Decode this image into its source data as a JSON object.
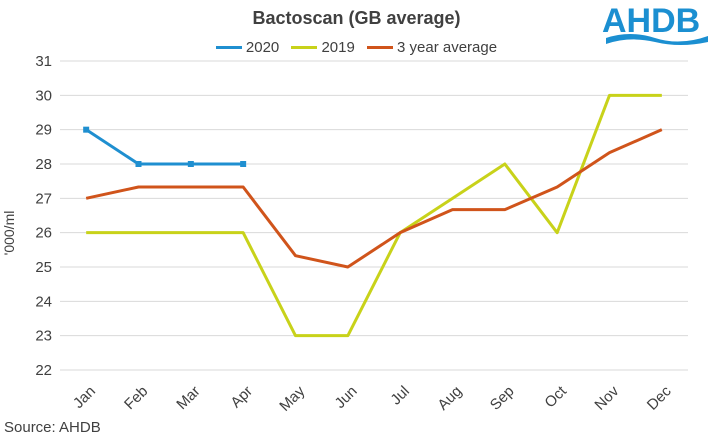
{
  "source": "Source: AHDB",
  "logo_text": "AHDB",
  "chart_data": {
    "type": "line",
    "title": "Bactoscan (GB average)",
    "ylabel": "'000/ml",
    "xlabel": "",
    "categories": [
      "Jan",
      "Feb",
      "Mar",
      "Apr",
      "May",
      "Jun",
      "Jul",
      "Aug",
      "Sep",
      "Oct",
      "Nov",
      "Dec"
    ],
    "ylim": [
      22,
      31
    ],
    "yticks": [
      22,
      23,
      24,
      25,
      26,
      27,
      28,
      29,
      30,
      31
    ],
    "grid": true,
    "legend_position": "top",
    "series": [
      {
        "name": "2020",
        "color": "#1f8fd0",
        "marker": "square",
        "values": [
          29,
          28,
          28,
          28,
          null,
          null,
          null,
          null,
          null,
          null,
          null,
          null
        ]
      },
      {
        "name": "2019",
        "color": "#c8d21a",
        "marker": "none",
        "values": [
          26,
          26,
          26,
          26,
          23,
          23,
          26,
          27,
          28,
          26,
          30,
          30
        ]
      },
      {
        "name": "3 year average",
        "color": "#d0541b",
        "marker": "none",
        "values": [
          27,
          27.33,
          27.33,
          27.33,
          25.33,
          25,
          26,
          26.67,
          26.67,
          27.33,
          28.33,
          29
        ]
      }
    ]
  }
}
